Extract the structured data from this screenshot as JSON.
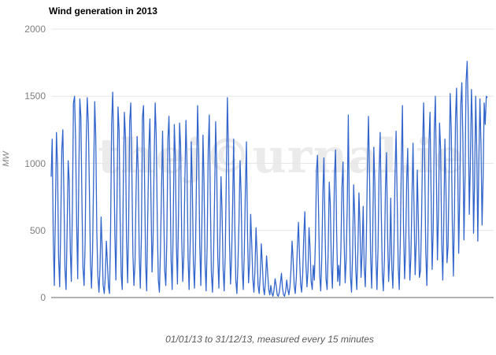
{
  "title": "Wind generation in 2013",
  "watermark": "thej©urnal.ie",
  "caption": "01/01/13 to 31/12/13, measured every 15 minutes",
  "chart_data": {
    "type": "line",
    "title": "Wind generation in 2013",
    "xlabel": "",
    "ylabel": "MW",
    "x_start": "01/01/13",
    "x_end": "31/12/13",
    "sampling_interval": "every 15 minutes",
    "ylim": [
      0,
      2000
    ],
    "yticks": [
      0,
      500,
      1000,
      1500,
      2000
    ],
    "grid": true,
    "legend": "none",
    "series_color": "#3366cc",
    "values": [
      900,
      1180,
      420,
      90,
      640,
      1230,
      980,
      300,
      80,
      520,
      1100,
      1250,
      760,
      210,
      60,
      480,
      1020,
      870,
      350,
      120,
      680,
      1450,
      1500,
      1180,
      540,
      140,
      860,
      1480,
      1350,
      700,
      220,
      90,
      400,
      1150,
      1490,
      1300,
      820,
      260,
      70,
      350,
      900,
      1460,
      1200,
      480,
      160,
      40,
      220,
      600,
      380,
      90,
      30,
      150,
      420,
      260,
      80,
      30,
      520,
      1300,
      1530,
      1100,
      460,
      130,
      700,
      1420,
      1240,
      580,
      160,
      60,
      900,
      1380,
      1190,
      420,
      110,
      540,
      1310,
      1450,
      980,
      330,
      90,
      260,
      780,
      1200,
      950,
      310,
      70,
      450,
      1340,
      1430,
      880,
      240,
      50,
      620,
      1100,
      1330,
      760,
      190,
      420,
      980,
      1450,
      1210,
      560,
      130,
      40,
      350,
      820,
      1240,
      680,
      200,
      90,
      430,
      1180,
      1350,
      900,
      280,
      60,
      520,
      1290,
      1050,
      380,
      100,
      640,
      1300,
      1130,
      450,
      120,
      310,
      860,
      1320,
      990,
      290,
      60,
      410,
      1160,
      830,
      260,
      70,
      350,
      940,
      1430,
      1060,
      390,
      90,
      540,
      1210,
      880,
      240,
      50,
      380,
      1100,
      1360,
      720,
      180,
      40,
      290,
      760,
      1310,
      950,
      300,
      70,
      430,
      900,
      650,
      210,
      50,
      320,
      870,
      1490,
      1120,
      420,
      100,
      280,
      690,
      1180,
      540,
      130,
      30,
      240,
      580,
      1020,
      760,
      220,
      60,
      340,
      810,
      1160,
      480,
      110,
      260,
      620,
      390,
      140,
      40,
      200,
      520,
      330,
      90,
      30,
      160,
      400,
      250,
      70,
      20,
      130,
      310,
      180,
      60,
      20,
      90,
      30,
      10,
      60,
      140,
      90,
      20,
      10,
      40,
      110,
      180,
      70,
      20,
      10,
      50,
      130,
      60,
      20,
      80,
      210,
      420,
      280,
      90,
      30,
      150,
      380,
      560,
      310,
      100,
      40,
      180,
      450,
      640,
      260,
      80,
      200,
      520,
      360,
      120,
      60,
      240,
      130,
      420,
      950,
      1060,
      610,
      170,
      50,
      290,
      780,
      1040,
      520,
      140,
      60,
      330,
      860,
      700,
      240,
      70,
      380,
      920,
      1100,
      480,
      120,
      240,
      90,
      360,
      820,
      1010,
      450,
      110,
      280,
      700,
      1360,
      590,
      160,
      40,
      310,
      840,
      620,
      200,
      60,
      350,
      780,
      540,
      150,
      330,
      680,
      230,
      80,
      420,
      980,
      1350,
      900,
      310,
      70,
      450,
      1120,
      850,
      290,
      60,
      380,
      940,
      1230,
      670,
      180,
      50,
      290,
      820,
      1080,
      460,
      120,
      310,
      740,
      220,
      70,
      390,
      900,
      1240,
      760,
      230,
      60,
      440,
      1020,
      1430,
      540,
      140,
      350,
      880,
      1110,
      480,
      130,
      300,
      760,
      1150,
      620,
      170,
      420,
      950,
      560,
      150,
      200,
      560,
      1130,
      1450,
      980,
      340,
      90,
      480,
      1160,
      1380,
      760,
      210,
      520,
      1240,
      1500,
      890,
      280,
      640,
      1300,
      1100,
      420,
      130,
      560,
      1180,
      820,
      260,
      380,
      940,
      1520,
      1250,
      560,
      160,
      620,
      1340,
      1560,
      1020,
      330,
      780,
      1440,
      1600,
      1150,
      430,
      900,
      1610,
      1760,
      1380,
      620,
      980,
      1550,
      1270,
      480,
      860,
      1500,
      1120,
      420,
      1010,
      1480,
      1150,
      540,
      880,
      1450,
      1290,
      1500,
      1490
    ]
  }
}
